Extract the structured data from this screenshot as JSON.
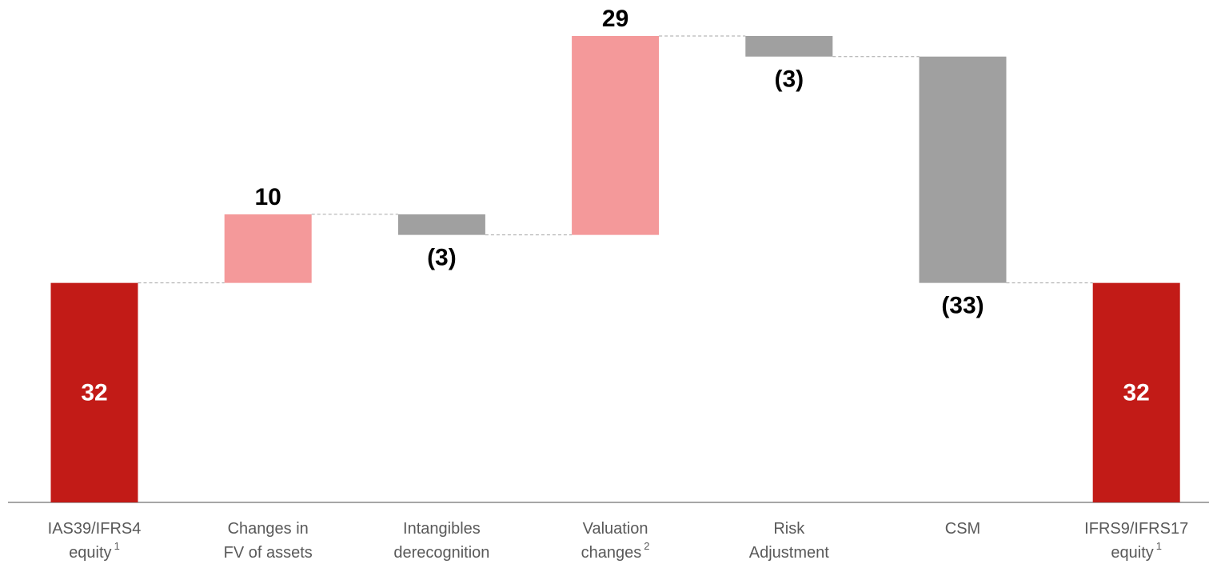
{
  "chart_data": {
    "type": "waterfall",
    "categories": [
      [
        "IAS39/IFRS4",
        "equity"
      ],
      [
        "Changes in",
        "FV of assets"
      ],
      [
        "Intangibles",
        "derecognition"
      ],
      [
        "Valuation",
        "changes"
      ],
      [
        "Risk",
        "Adjustment"
      ],
      [
        "CSM"
      ],
      [
        "IFRS9/IFRS17",
        "equity"
      ]
    ],
    "footnotes": [
      "1",
      null,
      null,
      "2",
      null,
      null,
      "1"
    ],
    "values": [
      32,
      10,
      -3,
      29,
      -3,
      -33,
      32
    ],
    "value_labels": [
      "32",
      "10",
      "(3)",
      "29",
      "(3)",
      "(33)",
      "32"
    ],
    "colors": {
      "total": "#c21b17",
      "increase": "#f4999a",
      "decrease": "#a0a0a0"
    }
  }
}
